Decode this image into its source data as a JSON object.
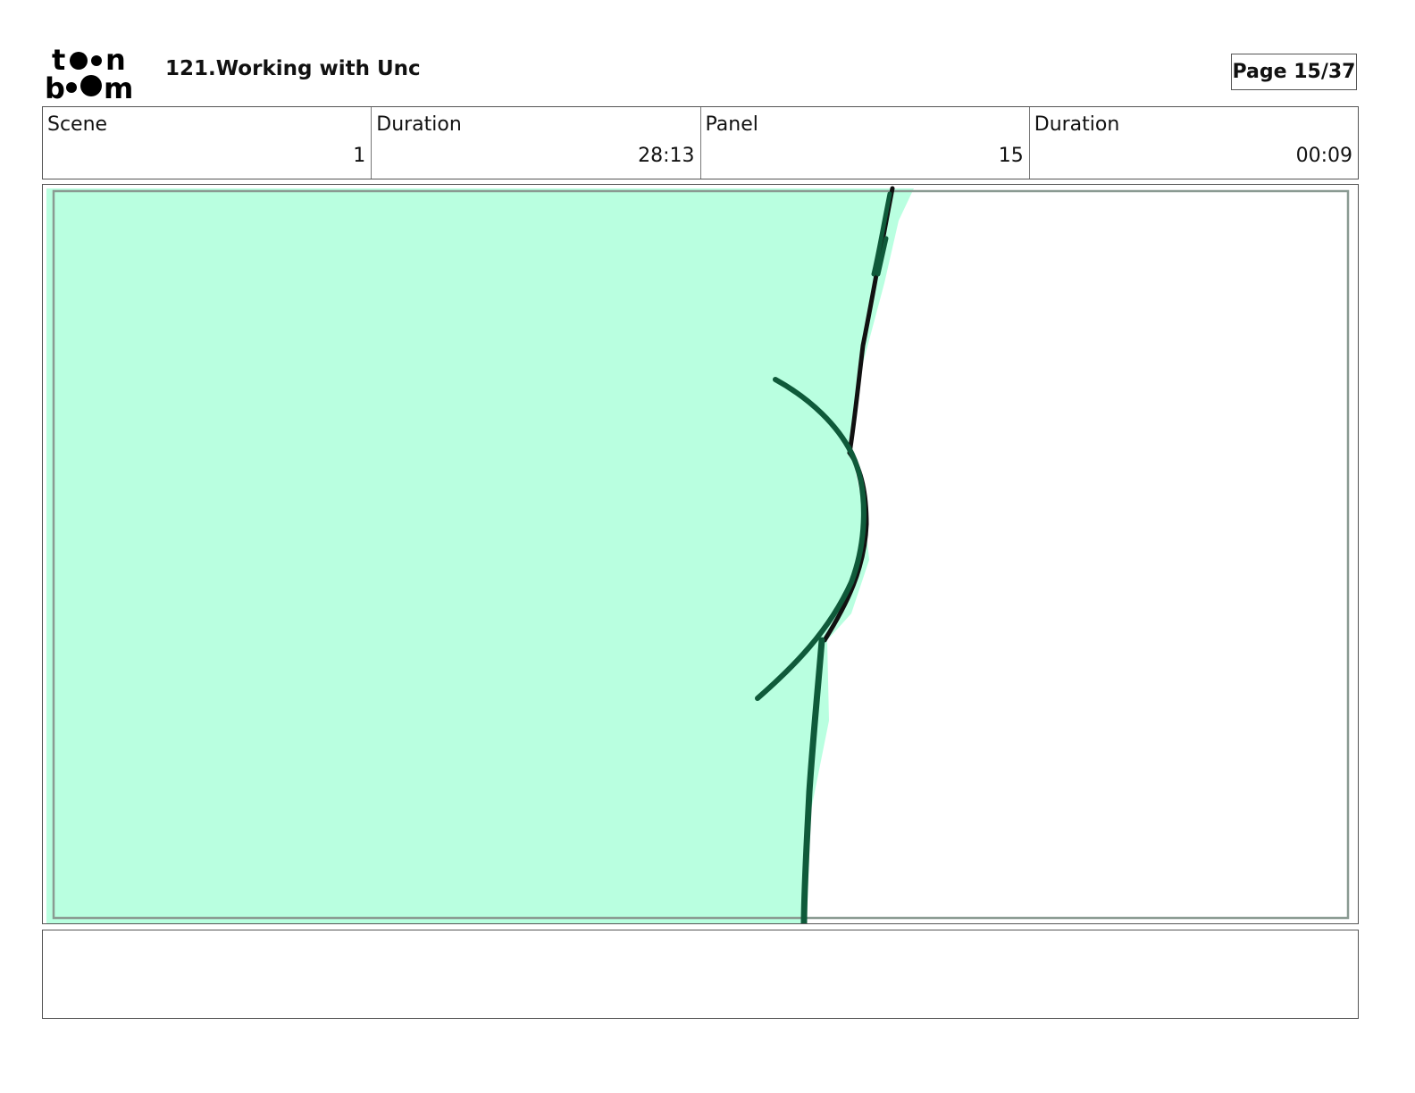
{
  "header": {
    "logo_text": "toon boom",
    "title": "121.Working with Unc",
    "page_label": "Page 15/37"
  },
  "info": [
    {
      "label": "Scene",
      "value": "1"
    },
    {
      "label": "Duration",
      "value": "28:13"
    },
    {
      "label": "Panel",
      "value": "15"
    },
    {
      "label": "Duration",
      "value": "00:09"
    }
  ],
  "colors": {
    "fill": "#b9ffe0",
    "stroke_dark": "#0f5a3a",
    "stroke_black": "#111111"
  },
  "notes": ""
}
